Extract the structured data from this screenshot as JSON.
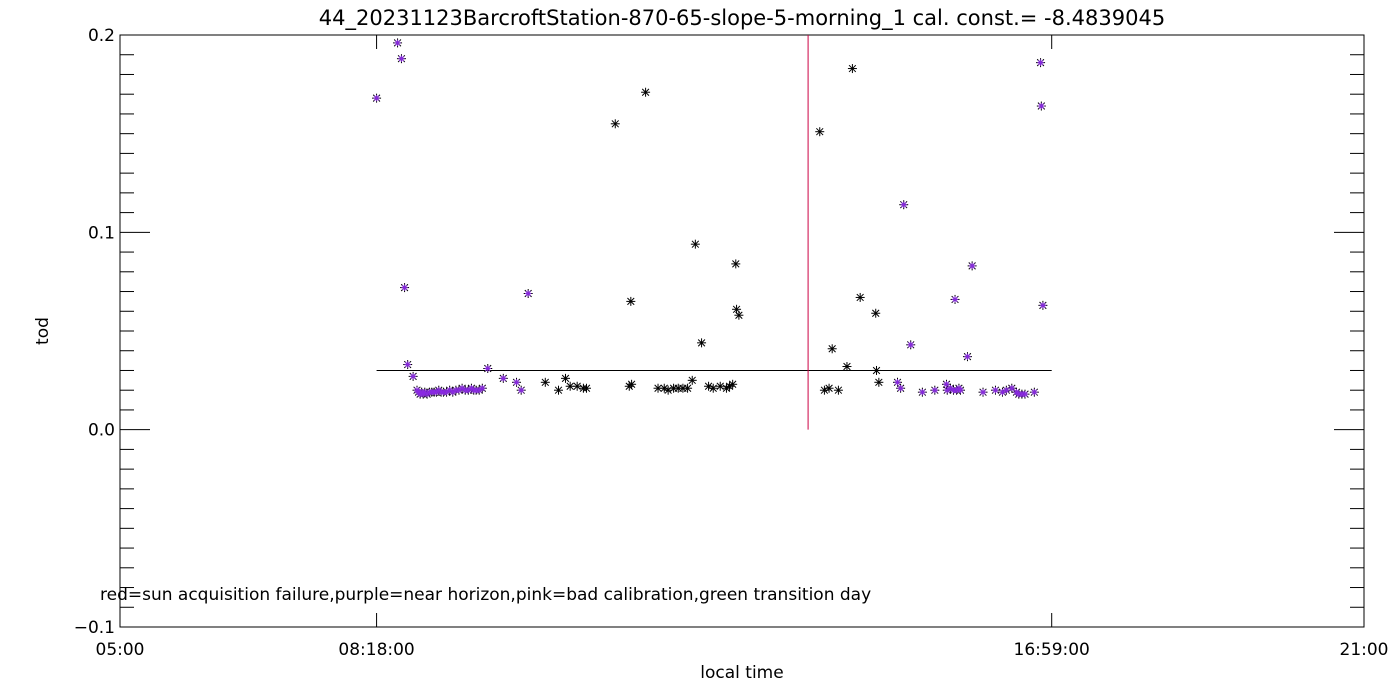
{
  "chart_data": {
    "type": "scatter",
    "title": "44_20231123BarcroftStation-870-65-slope-5-morning_1 cal. const.= -8.4839045",
    "xlabel": "local time",
    "ylabel": "tod",
    "xlim": [
      5.0,
      21.0
    ],
    "ylim": [
      -0.1,
      0.2
    ],
    "x_ticks": [
      {
        "value": 5.0,
        "label": "05:00"
      },
      {
        "value": 8.3,
        "label": "08:18:00"
      },
      {
        "value": 16.9833,
        "label": "16:59:00"
      },
      {
        "value": 21.0,
        "label": "21:00"
      }
    ],
    "y_ticks": [
      {
        "value": -0.1,
        "label": "−0.1"
      },
      {
        "value": 0.0,
        "label": "0.0"
      },
      {
        "value": 0.1,
        "label": "0.1"
      },
      {
        "value": 0.2,
        "label": "0.2"
      }
    ],
    "annotation": "red=sun acquisition failure,purple=near horizon,pink=bad calibration,green transition day",
    "reference_lines": [
      {
        "kind": "horizontal",
        "y": 0.03,
        "x_from": 8.3,
        "x_to": 16.9833,
        "color": "#000000"
      },
      {
        "kind": "vertical",
        "x": 13.85,
        "y_from": 0.0,
        "y_to": 0.2,
        "color": "#cc0044"
      }
    ],
    "series": [
      {
        "marker": "asterisk",
        "color": "#000000",
        "points": [
          [
            8.3,
            0.168
          ],
          [
            8.57,
            0.196
          ],
          [
            8.62,
            0.188
          ],
          [
            8.66,
            0.072
          ],
          [
            8.7,
            0.033
          ],
          [
            8.77,
            0.027
          ],
          [
            8.82,
            0.02
          ],
          [
            8.84,
            0.019
          ],
          [
            8.86,
            0.018
          ],
          [
            8.88,
            0.019
          ],
          [
            8.9,
            0.018
          ],
          [
            8.92,
            0.019
          ],
          [
            8.95,
            0.018
          ],
          [
            8.98,
            0.019
          ],
          [
            9.01,
            0.019
          ],
          [
            9.04,
            0.019
          ],
          [
            9.07,
            0.019
          ],
          [
            9.1,
            0.02
          ],
          [
            9.13,
            0.019
          ],
          [
            9.16,
            0.019
          ],
          [
            9.2,
            0.019
          ],
          [
            9.24,
            0.02
          ],
          [
            9.28,
            0.019
          ],
          [
            9.32,
            0.02
          ],
          [
            9.36,
            0.02
          ],
          [
            9.4,
            0.021
          ],
          [
            9.44,
            0.02
          ],
          [
            9.48,
            0.02
          ],
          [
            9.52,
            0.021
          ],
          [
            9.55,
            0.02
          ],
          [
            9.58,
            0.02
          ],
          [
            9.62,
            0.02
          ],
          [
            9.66,
            0.021
          ],
          [
            9.73,
            0.031
          ],
          [
            9.93,
            0.026
          ],
          [
            10.1,
            0.024
          ],
          [
            10.16,
            0.02
          ],
          [
            10.25,
            0.069
          ],
          [
            10.47,
            0.024
          ],
          [
            10.64,
            0.02
          ],
          [
            10.73,
            0.026
          ],
          [
            10.79,
            0.022
          ],
          [
            10.88,
            0.022
          ],
          [
            10.96,
            0.021
          ],
          [
            11.0,
            0.021
          ],
          [
            11.37,
            0.155
          ],
          [
            11.55,
            0.022
          ],
          [
            11.58,
            0.023
          ],
          [
            11.57,
            0.065
          ],
          [
            11.76,
            0.171
          ],
          [
            11.92,
            0.021
          ],
          [
            12.0,
            0.021
          ],
          [
            12.05,
            0.02
          ],
          [
            12.12,
            0.021
          ],
          [
            12.18,
            0.021
          ],
          [
            12.24,
            0.021
          ],
          [
            12.3,
            0.021
          ],
          [
            12.36,
            0.025
          ],
          [
            12.4,
            0.094
          ],
          [
            12.48,
            0.044
          ],
          [
            12.57,
            0.022
          ],
          [
            12.63,
            0.021
          ],
          [
            12.72,
            0.022
          ],
          [
            12.8,
            0.021
          ],
          [
            12.84,
            0.022
          ],
          [
            12.88,
            0.023
          ],
          [
            12.92,
            0.084
          ],
          [
            12.93,
            0.061
          ],
          [
            12.96,
            0.058
          ],
          [
            14.0,
            0.151
          ],
          [
            14.06,
            0.02
          ],
          [
            14.12,
            0.021
          ],
          [
            14.16,
            0.041
          ],
          [
            14.24,
            0.02
          ],
          [
            14.35,
            0.032
          ],
          [
            14.42,
            0.183
          ],
          [
            14.52,
            0.067
          ],
          [
            14.73,
            0.03
          ],
          [
            14.72,
            0.059
          ],
          [
            14.76,
            0.024
          ],
          [
            15.0,
            0.024
          ],
          [
            15.04,
            0.021
          ],
          [
            15.08,
            0.114
          ],
          [
            15.17,
            0.043
          ],
          [
            15.32,
            0.019
          ],
          [
            15.48,
            0.02
          ],
          [
            15.63,
            0.023
          ],
          [
            15.64,
            0.02
          ],
          [
            15.68,
            0.021
          ],
          [
            15.72,
            0.02
          ],
          [
            15.74,
            0.066
          ],
          [
            15.76,
            0.02
          ],
          [
            15.79,
            0.021
          ],
          [
            15.81,
            0.02
          ],
          [
            15.9,
            0.037
          ],
          [
            15.96,
            0.083
          ],
          [
            16.1,
            0.019
          ],
          [
            16.26,
            0.02
          ],
          [
            16.35,
            0.019
          ],
          [
            16.4,
            0.02
          ],
          [
            16.47,
            0.021
          ],
          [
            16.53,
            0.019
          ],
          [
            16.56,
            0.018
          ],
          [
            16.6,
            0.018
          ],
          [
            16.64,
            0.018
          ],
          [
            16.76,
            0.019
          ],
          [
            16.84,
            0.186
          ],
          [
            16.85,
            0.164
          ],
          [
            16.87,
            0.063
          ]
        ]
      },
      {
        "marker": "asterisk",
        "color": "#8a2be2",
        "points": [
          [
            8.3,
            0.168
          ],
          [
            8.57,
            0.196
          ],
          [
            8.62,
            0.188
          ],
          [
            8.66,
            0.072
          ],
          [
            8.7,
            0.033
          ],
          [
            8.77,
            0.027
          ],
          [
            8.82,
            0.02
          ],
          [
            8.84,
            0.019
          ],
          [
            8.86,
            0.018
          ],
          [
            8.88,
            0.019
          ],
          [
            8.9,
            0.018
          ],
          [
            8.92,
            0.019
          ],
          [
            8.95,
            0.018
          ],
          [
            8.98,
            0.019
          ],
          [
            9.01,
            0.019
          ],
          [
            9.04,
            0.019
          ],
          [
            9.07,
            0.019
          ],
          [
            9.1,
            0.02
          ],
          [
            9.13,
            0.019
          ],
          [
            9.16,
            0.019
          ],
          [
            9.2,
            0.019
          ],
          [
            9.24,
            0.02
          ],
          [
            9.28,
            0.019
          ],
          [
            9.32,
            0.02
          ],
          [
            9.36,
            0.02
          ],
          [
            9.4,
            0.021
          ],
          [
            9.44,
            0.02
          ],
          [
            9.48,
            0.02
          ],
          [
            9.52,
            0.021
          ],
          [
            9.55,
            0.02
          ],
          [
            9.58,
            0.02
          ],
          [
            9.62,
            0.02
          ],
          [
            9.66,
            0.021
          ],
          [
            9.73,
            0.031
          ],
          [
            9.93,
            0.026
          ],
          [
            10.1,
            0.024
          ],
          [
            10.16,
            0.02
          ],
          [
            10.25,
            0.069
          ],
          [
            15.0,
            0.024
          ],
          [
            15.04,
            0.021
          ],
          [
            15.08,
            0.114
          ],
          [
            15.17,
            0.043
          ],
          [
            15.32,
            0.019
          ],
          [
            15.48,
            0.02
          ],
          [
            15.63,
            0.023
          ],
          [
            15.64,
            0.02
          ],
          [
            15.68,
            0.021
          ],
          [
            15.72,
            0.02
          ],
          [
            15.74,
            0.066
          ],
          [
            15.76,
            0.02
          ],
          [
            15.79,
            0.021
          ],
          [
            15.81,
            0.02
          ],
          [
            15.9,
            0.037
          ],
          [
            15.96,
            0.083
          ],
          [
            16.1,
            0.019
          ],
          [
            16.26,
            0.02
          ],
          [
            16.35,
            0.019
          ],
          [
            16.4,
            0.02
          ],
          [
            16.47,
            0.021
          ],
          [
            16.53,
            0.019
          ],
          [
            16.56,
            0.018
          ],
          [
            16.6,
            0.018
          ],
          [
            16.64,
            0.018
          ],
          [
            16.76,
            0.019
          ],
          [
            16.84,
            0.186
          ],
          [
            16.85,
            0.164
          ],
          [
            16.87,
            0.063
          ]
        ]
      }
    ]
  }
}
